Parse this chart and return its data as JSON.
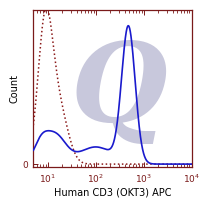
{
  "xlabel": "Human CD3 (OKT3) APC",
  "ylabel": "Count",
  "background_color": "#ffffff",
  "watermark_color": "#c8c8dc",
  "isotype_color": "#8b1a1a",
  "sample_color": "#1a1acd",
  "spine_color": "#7a1a1a",
  "tick_color": "#7a1a1a",
  "label_color": "#000000",
  "xlim": [
    5.0,
    10000.0
  ],
  "ylim": [
    0.0,
    1.08
  ]
}
